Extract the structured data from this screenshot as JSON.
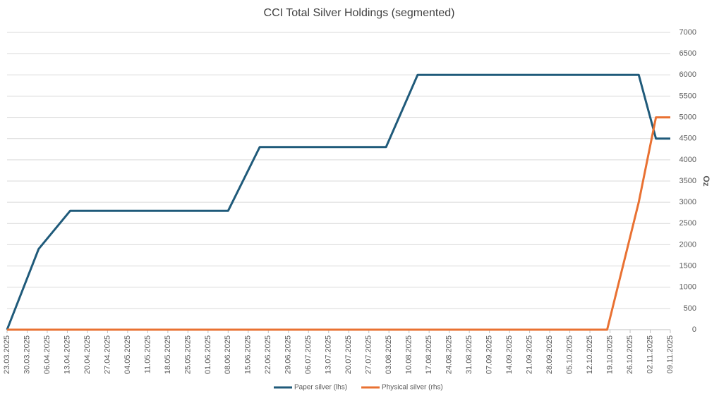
{
  "chart_data": {
    "type": "line",
    "title": "CCI Total Silver Holdings (segmented)",
    "y_axis_label": "Oz",
    "x": [
      "23.03.2025",
      "03.04.2025",
      "14.04.2025",
      "08.06.2025",
      "19.06.2025",
      "02.08.2025",
      "13.08.2025",
      "18.10.2025",
      "29.10.2025",
      "04.11.2025",
      "09.11.2025"
    ],
    "xlim": [
      "23.03.2025",
      "09.11.2025"
    ],
    "xticks": [
      "23.03.2025",
      "30.03.2025",
      "06.04.2025",
      "13.04.2025",
      "20.04.2025",
      "27.04.2025",
      "04.05.2025",
      "11.05.2025",
      "18.05.2025",
      "25.05.2025",
      "01.06.2025",
      "08.06.2025",
      "15.06.2025",
      "22.06.2025",
      "29.06.2025",
      "06.07.2025",
      "13.07.2025",
      "20.07.2025",
      "27.07.2025",
      "03.08.2025",
      "10.08.2025",
      "17.08.2025",
      "24.08.2025",
      "31.08.2025",
      "07.09.2025",
      "14.09.2025",
      "21.09.2025",
      "28.09.2025",
      "05.10.2025",
      "12.10.2025",
      "19.10.2025",
      "26.10.2025",
      "02.11.2025",
      "09.11.2025"
    ],
    "ylim": [
      0,
      7000
    ],
    "yticks": [
      0,
      500,
      1000,
      1500,
      2000,
      2500,
      3000,
      3500,
      4000,
      4500,
      5000,
      5500,
      6000,
      6500,
      7000
    ],
    "grid": true,
    "legend": "bottom",
    "series": [
      {
        "name": "Paper silver (lhs)",
        "color": "#1f5a7a",
        "values": [
          0,
          1900,
          2800,
          2800,
          4300,
          4300,
          6000,
          6000,
          6000,
          4500,
          4500
        ]
      },
      {
        "name": "Physical silver (rhs)",
        "color": "#e97132",
        "values": [
          0,
          0,
          0,
          0,
          0,
          0,
          0,
          0,
          3000,
          5000,
          5000
        ]
      }
    ]
  }
}
